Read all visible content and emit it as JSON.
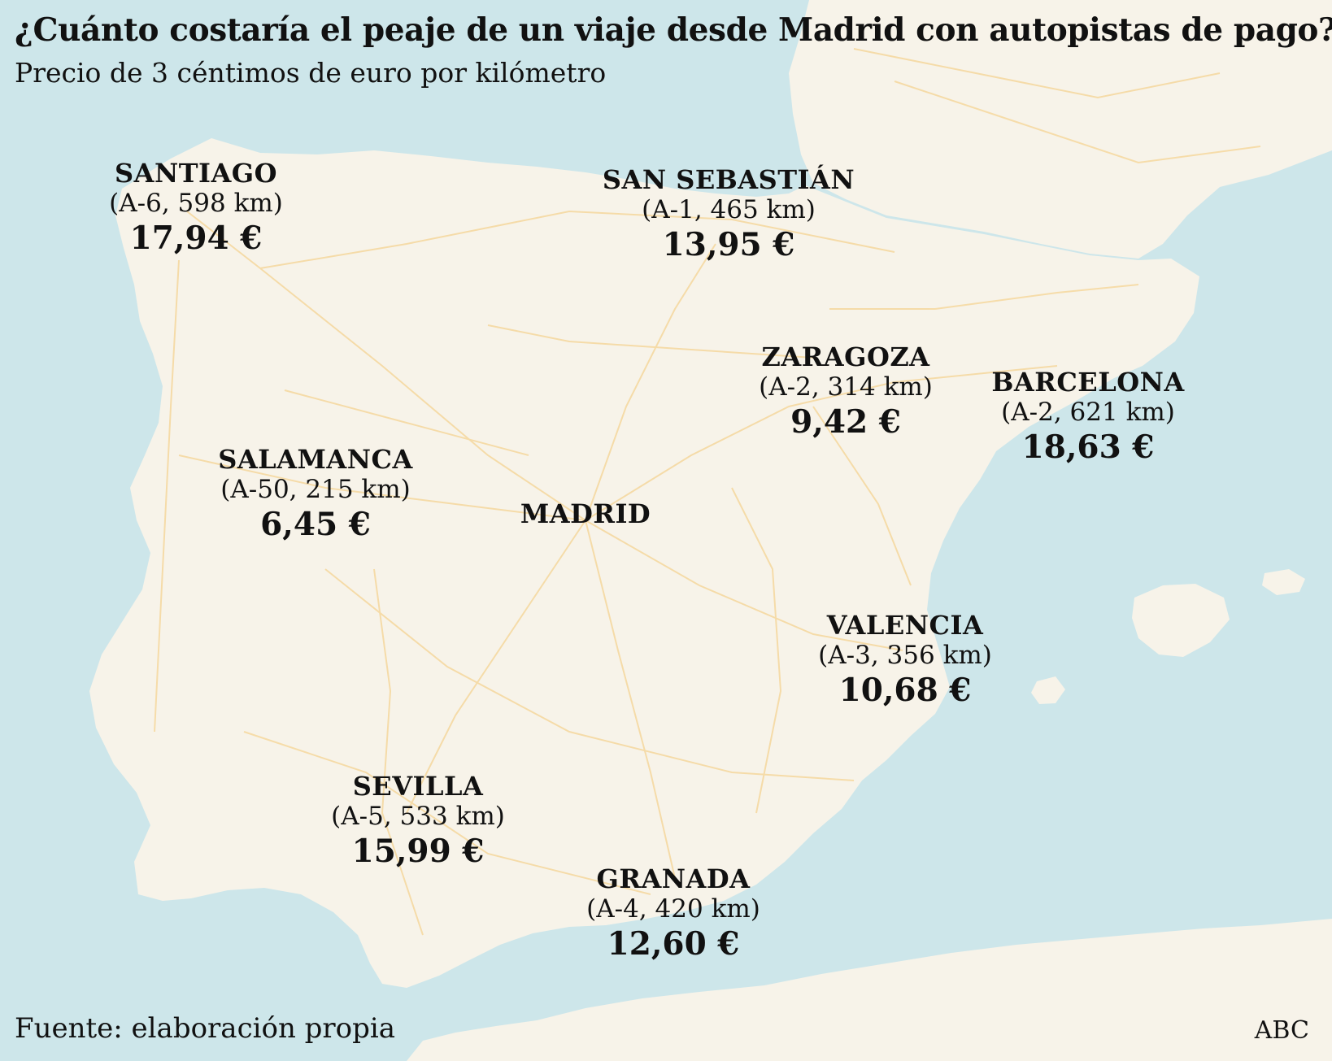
{
  "title": "¿Cuánto costaría el peaje de un viaje desde Madrid con autopistas de pago?",
  "subtitle": "Precio de 3 céntimos de euro por kilómetro",
  "colors": {
    "sea": "#cde6ea",
    "land": "#f7f3e9",
    "roads": "#f5d9a2",
    "text": "#111111"
  },
  "origin": "MADRID",
  "cities": [
    {
      "name": "SANTIAGO",
      "route": "(A-6, 598 km)",
      "price": "17,94 €"
    },
    {
      "name": "SAN SEBASTIÁN",
      "route": "(A-1, 465 km)",
      "price": "13,95 €"
    },
    {
      "name": "ZARAGOZA",
      "route": "(A-2, 314 km)",
      "price": "9,42 €"
    },
    {
      "name": "BARCELONA",
      "route": "(A-2, 621 km)",
      "price": "18,63 €"
    },
    {
      "name": "SALAMANCA",
      "route": "(A-50, 215 km)",
      "price": "6,45 €"
    },
    {
      "name": "VALENCIA",
      "route": "(A-3, 356 km)",
      "price": "10,68 €"
    },
    {
      "name": "SEVILLA",
      "route": "(A-5, 533 km)",
      "price": "15,99 €"
    },
    {
      "name": "GRANADA",
      "route": "(A-4, 420 km)",
      "price": "12,60 €"
    }
  ],
  "source": "Fuente: elaboración propia",
  "brand": "ABC"
}
